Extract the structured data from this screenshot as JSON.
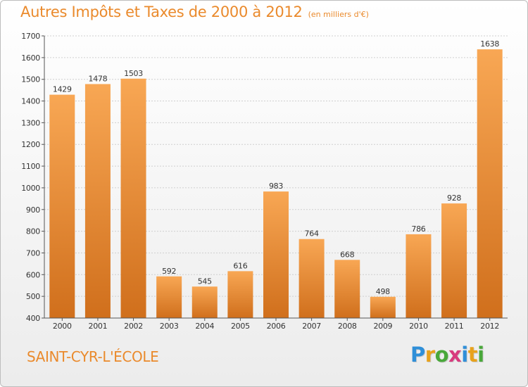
{
  "header": {
    "title": "Autres Impôts et Taxes de 2000 à 2012",
    "unit_note": "(en milliers d'€)"
  },
  "footer": {
    "commune": "SAINT-CYR-L'ÉCOLE",
    "brand": "Proxiti",
    "brand_letters": [
      {
        "ch": "P",
        "color": "#2f8fd8"
      },
      {
        "ch": "r",
        "color": "#e8a21c"
      },
      {
        "ch": "o",
        "color": "#49a83a"
      },
      {
        "ch": "x",
        "color": "#d83a7e"
      },
      {
        "ch": "i",
        "color": "#2f8fd8"
      },
      {
        "ch": "t",
        "color": "#e8a21c"
      },
      {
        "ch": "i",
        "color": "#49a83a"
      }
    ]
  },
  "colors": {
    "accent": "#ea8a2c",
    "bar_light": "#f8a754",
    "bar_dark": "#d06f1c",
    "grid": "#cfcfcf",
    "text": "#333333"
  },
  "chart_data": {
    "type": "bar",
    "categories": [
      "2000",
      "2001",
      "2002",
      "2003",
      "2004",
      "2005",
      "2006",
      "2007",
      "2008",
      "2009",
      "2010",
      "2011",
      "2012"
    ],
    "values": [
      1429,
      1478,
      1503,
      592,
      545,
      616,
      983,
      764,
      668,
      498,
      786,
      928,
      1638
    ],
    "ylim": [
      400,
      1700
    ],
    "yticks": [
      400,
      500,
      600,
      700,
      800,
      900,
      1000,
      1100,
      1200,
      1300,
      1400,
      1500,
      1600,
      1700
    ],
    "grid": true,
    "data_labels": true
  }
}
